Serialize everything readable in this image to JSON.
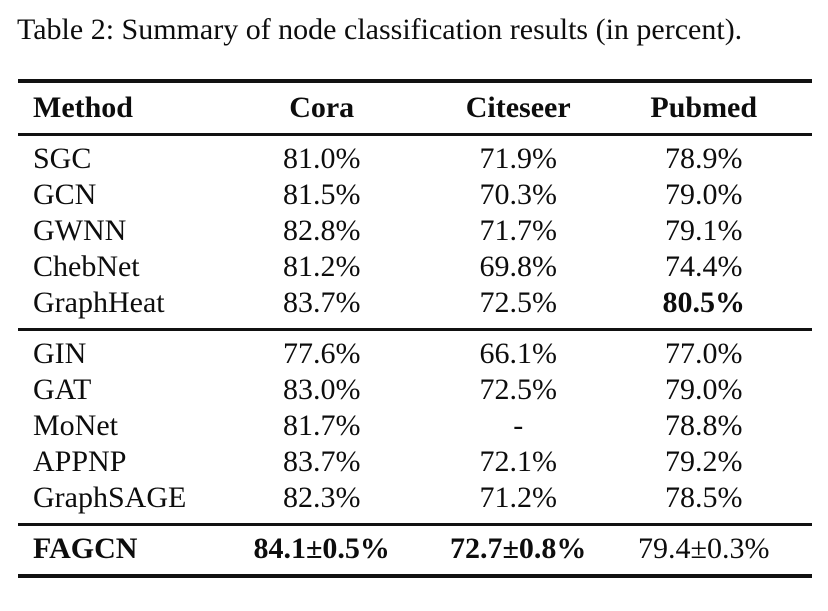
{
  "caption": "Table 2: Summary of node classification results (in percent).",
  "table": {
    "columns": [
      "Method",
      "Cora",
      "Citeseer",
      "Pubmed"
    ],
    "groups": [
      {
        "rows": [
          {
            "method": "SGC",
            "cora": "81.0%",
            "citeseer": "71.9%",
            "pubmed": "78.9%"
          },
          {
            "method": "GCN",
            "cora": "81.5%",
            "citeseer": "70.3%",
            "pubmed": "79.0%"
          },
          {
            "method": "GWNN",
            "cora": "82.8%",
            "citeseer": "71.7%",
            "pubmed": "79.1%"
          },
          {
            "method": "ChebNet",
            "cora": "81.2%",
            "citeseer": "69.8%",
            "pubmed": "74.4%"
          },
          {
            "method": "GraphHeat",
            "cora": "83.7%",
            "citeseer": "72.5%",
            "pubmed": "80.5%"
          }
        ]
      },
      {
        "rows": [
          {
            "method": "GIN",
            "cora": "77.6%",
            "citeseer": "66.1%",
            "pubmed": "77.0%"
          },
          {
            "method": "GAT",
            "cora": "83.0%",
            "citeseer": "72.5%",
            "pubmed": "79.0%"
          },
          {
            "method": "MoNet",
            "cora": "81.7%",
            "citeseer": "-",
            "pubmed": "78.8%"
          },
          {
            "method": "APPNP",
            "cora": "83.7%",
            "citeseer": "72.1%",
            "pubmed": "79.2%"
          },
          {
            "method": "GraphSAGE",
            "cora": "82.3%",
            "citeseer": "71.2%",
            "pubmed": "78.5%"
          }
        ]
      },
      {
        "rows": [
          {
            "method": "FAGCN",
            "cora": "84.1±0.5%",
            "citeseer": "72.7±0.8%",
            "pubmed": "79.4±0.3%"
          }
        ]
      }
    ]
  },
  "colors": {
    "background": "#ffffff",
    "text": "#0d0d0d",
    "rule": "#111111"
  }
}
